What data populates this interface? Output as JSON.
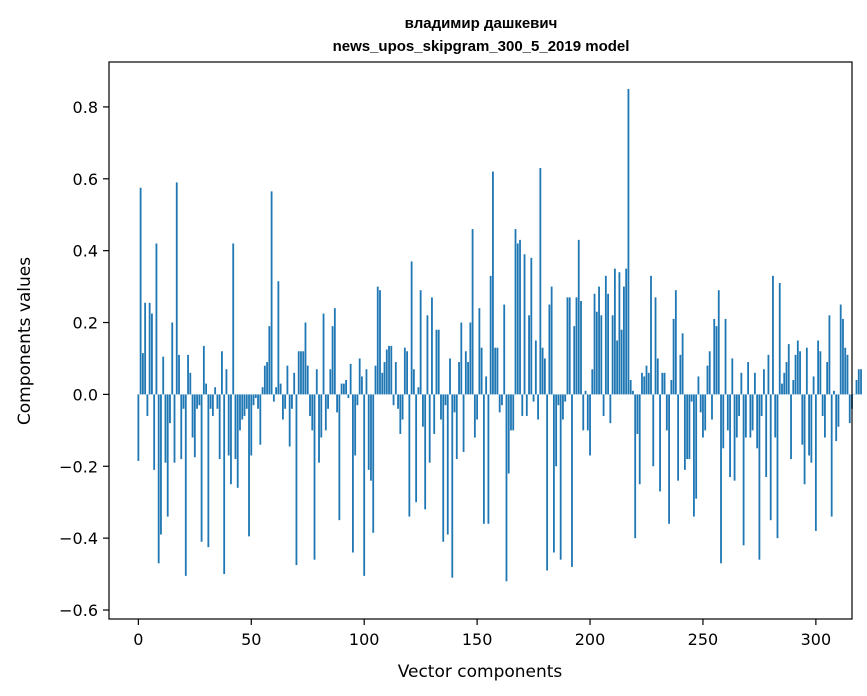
{
  "chart_data": {
    "type": "bar",
    "title": "владимир дашкевич",
    "subtitle": "news_upos_skipgram_300_5_2019 model",
    "xlabel": "Vector components",
    "ylabel": "Components values",
    "xlim": [
      -13,
      316
    ],
    "ylim": [
      -0.625,
      0.925
    ],
    "xticks": [
      0,
      50,
      100,
      150,
      200,
      250,
      300
    ],
    "xtick_labels": [
      "0",
      "50",
      "100",
      "150",
      "200",
      "250",
      "300"
    ],
    "yticks": [
      -0.6,
      -0.4,
      -0.2,
      0.0,
      0.2,
      0.4,
      0.6,
      0.8
    ],
    "ytick_labels": [
      "−0.6",
      "−0.4",
      "−0.2",
      "0.0",
      "0.2",
      "0.4",
      "0.6",
      "0.8"
    ],
    "bar_color": "#1f77b4",
    "grid": false,
    "values": [
      -0.185,
      0.575,
      0.115,
      0.255,
      -0.06,
      0.255,
      0.225,
      -0.21,
      0.42,
      -0.47,
      -0.39,
      0.105,
      -0.19,
      -0.34,
      -0.08,
      0.2,
      -0.19,
      0.59,
      0.11,
      -0.18,
      -0.04,
      -0.505,
      0.11,
      0.06,
      -0.12,
      -0.175,
      -0.04,
      -0.03,
      -0.41,
      0.135,
      0.03,
      -0.425,
      -0.04,
      -0.06,
      0.02,
      -0.04,
      -0.18,
      0.12,
      -0.5,
      0.07,
      -0.17,
      -0.25,
      0.42,
      -0.18,
      -0.26,
      -0.1,
      -0.07,
      -0.06,
      -0.04,
      -0.395,
      -0.17,
      -0.03,
      -0.01,
      -0.04,
      -0.14,
      0.02,
      0.08,
      0.09,
      0.19,
      0.565,
      -0.02,
      0.02,
      0.315,
      0.03,
      -0.07,
      -0.04,
      0.08,
      -0.145,
      -0.04,
      0.06,
      -0.475,
      0.12,
      0.12,
      0.12,
      0.2,
      0.08,
      -0.06,
      -0.1,
      -0.46,
      0.07,
      -0.19,
      -0.12,
      0.225,
      -0.1,
      -0.04,
      0.07,
      0.19,
      0.24,
      -0.05,
      -0.35,
      0.03,
      0.03,
      0.04,
      -0.01,
      0.085,
      -0.44,
      -0.17,
      -0.03,
      0.1,
      0.05,
      -0.505,
      0.07,
      -0.21,
      -0.24,
      -0.385,
      0.08,
      0.3,
      0.29,
      0.06,
      0.09,
      0.125,
      0.135,
      0.135,
      -0.03,
      0.09,
      -0.04,
      -0.11,
      -0.07,
      0.13,
      0.12,
      -0.34,
      0.37,
      0.07,
      -0.3,
      0.02,
      0.29,
      -0.09,
      -0.32,
      0.22,
      -0.19,
      0.27,
      -0.11,
      0.18,
      0.18,
      -0.07,
      -0.41,
      -0.03,
      -0.39,
      0.1,
      -0.51,
      -0.05,
      -0.18,
      0.09,
      0.2,
      -0.16,
      0.12,
      0.09,
      0.2,
      0.46,
      -0.12,
      -0.07,
      0.24,
      0.13,
      -0.36,
      0.05,
      -0.36,
      0.33,
      0.62,
      0.13,
      0.13,
      -0.05,
      -0.03,
      0.25,
      -0.52,
      -0.22,
      -0.1,
      -0.1,
      0.46,
      0.42,
      0.43,
      -0.06,
      0.39,
      -0.06,
      0.22,
      0.38,
      -0.02,
      0.15,
      -0.07,
      0.63,
      0.13,
      0.1,
      -0.49,
      0.25,
      0.3,
      -0.44,
      -0.2,
      -0.03,
      -0.46,
      -0.07,
      -0.02,
      0.27,
      0.27,
      -0.48,
      0.19,
      0.27,
      0.43,
      0.26,
      -0.1,
      0.01,
      -0.1,
      -0.17,
      0.07,
      0.28,
      0.23,
      0.3,
      0.22,
      -0.06,
      0.33,
      0.28,
      -0.08,
      0.22,
      0.35,
      0.15,
      0.34,
      0.18,
      0.3,
      0.35,
      0.85,
      0.04,
      0.01,
      -0.4,
      -0.11,
      -0.25,
      0.06,
      0.05,
      0.08,
      0.06,
      0.33,
      -0.2,
      0.27,
      0.1,
      -0.27,
      0.06,
      0.06,
      -0.1,
      -0.36,
      0.04,
      0.21,
      0.29,
      -0.24,
      0.11,
      0.17,
      -0.21,
      -0.18,
      -0.18,
      -0.02,
      -0.34,
      -0.29,
      0.05,
      -0.05,
      -0.12,
      -0.1,
      0.08,
      0.12,
      -0.07,
      0.21,
      0.19,
      0.29,
      -0.47,
      -0.15,
      0.21,
      -0.1,
      -0.23,
      0.1,
      -0.24,
      -0.12,
      -0.06,
      0.06,
      -0.42,
      -0.12,
      0.09,
      -0.12,
      -0.1,
      0.06,
      -0.15,
      -0.46,
      -0.06,
      0.07,
      -0.23,
      0.11,
      -0.35,
      0.33,
      -0.12,
      -0.4,
      0.31,
      0.03,
      0.06,
      0.09,
      0.14,
      -0.18,
      0.04,
      0.11,
      0.15,
      0.12,
      -0.14,
      -0.25,
      0.13,
      -0.17,
      -0.19,
      0.05,
      -0.38,
      0.15,
      0.12,
      -0.06,
      -0.12,
      0.09,
      0.22,
      -0.34,
      0.01,
      -0.13,
      -0.09,
      0.25,
      0.21,
      0.13,
      0.11,
      -0.08,
      -0.04,
      0.0,
      0.04,
      0.07,
      0.07
    ]
  }
}
